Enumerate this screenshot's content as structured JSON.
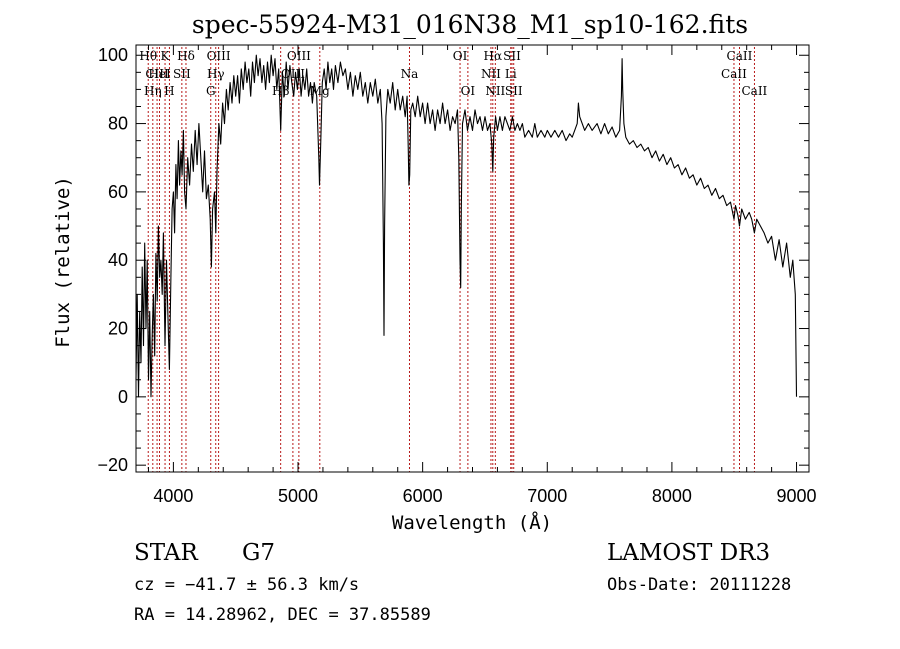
{
  "chart_data": {
    "type": "line",
    "title": "spec-55924-M31_016N38_M1_sp10-162.fits",
    "xlabel": "Wavelength (Å)",
    "ylabel": "Flux (relative)",
    "xlim": [
      3700,
      9100
    ],
    "ylim": [
      -22,
      103
    ],
    "xticks": [
      4000,
      5000,
      6000,
      7000,
      8000,
      9000
    ],
    "yticks": [
      -20,
      0,
      20,
      40,
      60,
      80,
      100
    ],
    "series": [
      {
        "name": "flux",
        "points": [
          [
            3700,
            5
          ],
          [
            3710,
            30
          ],
          [
            3720,
            0
          ],
          [
            3730,
            25
          ],
          [
            3740,
            10
          ],
          [
            3750,
            38
          ],
          [
            3760,
            15
          ],
          [
            3770,
            45
          ],
          [
            3780,
            20
          ],
          [
            3790,
            40
          ],
          [
            3800,
            5
          ],
          [
            3810,
            25
          ],
          [
            3820,
            0
          ],
          [
            3830,
            18
          ],
          [
            3840,
            30
          ],
          [
            3850,
            12
          ],
          [
            3860,
            42
          ],
          [
            3870,
            28
          ],
          [
            3880,
            50
          ],
          [
            3890,
            35
          ],
          [
            3900,
            40
          ],
          [
            3910,
            30
          ],
          [
            3920,
            48
          ],
          [
            3933,
            15
          ],
          [
            3945,
            40
          ],
          [
            3955,
            25
          ],
          [
            3968,
            8
          ],
          [
            3980,
            35
          ],
          [
            3990,
            55
          ],
          [
            4000,
            60
          ],
          [
            4010,
            48
          ],
          [
            4020,
            68
          ],
          [
            4030,
            58
          ],
          [
            4040,
            75
          ],
          [
            4050,
            62
          ],
          [
            4060,
            72
          ],
          [
            4070,
            65
          ],
          [
            4080,
            78
          ],
          [
            4090,
            60
          ],
          [
            4101,
            55
          ],
          [
            4115,
            70
          ],
          [
            4130,
            62
          ],
          [
            4145,
            74
          ],
          [
            4160,
            66
          ],
          [
            4175,
            78
          ],
          [
            4190,
            68
          ],
          [
            4205,
            80
          ],
          [
            4220,
            70
          ],
          [
            4235,
            60
          ],
          [
            4250,
            72
          ],
          [
            4265,
            58
          ],
          [
            4280,
            62
          ],
          [
            4295,
            52
          ],
          [
            4305,
            38
          ],
          [
            4315,
            55
          ],
          [
            4330,
            60
          ],
          [
            4340,
            48
          ],
          [
            4350,
            66
          ],
          [
            4365,
            80
          ],
          [
            4380,
            74
          ],
          [
            4395,
            86
          ],
          [
            4410,
            80
          ],
          [
            4425,
            90
          ],
          [
            4440,
            84
          ],
          [
            4455,
            92
          ],
          [
            4470,
            86
          ],
          [
            4485,
            94
          ],
          [
            4500,
            88
          ],
          [
            4515,
            94
          ],
          [
            4530,
            86
          ],
          [
            4545,
            96
          ],
          [
            4560,
            90
          ],
          [
            4575,
            98
          ],
          [
            4590,
            92
          ],
          [
            4605,
            96
          ],
          [
            4620,
            88
          ],
          [
            4635,
            98
          ],
          [
            4650,
            92
          ],
          [
            4665,
            100
          ],
          [
            4680,
            94
          ],
          [
            4695,
            99
          ],
          [
            4710,
            92
          ],
          [
            4725,
            97
          ],
          [
            4740,
            90
          ],
          [
            4755,
            98
          ],
          [
            4770,
            92
          ],
          [
            4785,
            100
          ],
          [
            4800,
            94
          ],
          [
            4815,
            99
          ],
          [
            4830,
            90
          ],
          [
            4845,
            96
          ],
          [
            4861,
            78
          ],
          [
            4875,
            95
          ],
          [
            4890,
            88
          ],
          [
            4905,
            98
          ],
          [
            4920,
            90
          ],
          [
            4935,
            97
          ],
          [
            4950,
            92
          ],
          [
            4965,
            88
          ],
          [
            4980,
            95
          ],
          [
            4995,
            90
          ],
          [
            5010,
            96
          ],
          [
            5025,
            88
          ],
          [
            5040,
            94
          ],
          [
            5055,
            90
          ],
          [
            5070,
            96
          ],
          [
            5085,
            88
          ],
          [
            5100,
            92
          ],
          [
            5115,
            86
          ],
          [
            5130,
            92
          ],
          [
            5150,
            88
          ],
          [
            5167,
            70
          ],
          [
            5172,
            62
          ],
          [
            5183,
            75
          ],
          [
            5195,
            92
          ],
          [
            5210,
            96
          ],
          [
            5225,
            90
          ],
          [
            5240,
            98
          ],
          [
            5255,
            92
          ],
          [
            5270,
            96
          ],
          [
            5285,
            90
          ],
          [
            5300,
            97
          ],
          [
            5320,
            92
          ],
          [
            5340,
            98
          ],
          [
            5360,
            94
          ],
          [
            5380,
            96
          ],
          [
            5400,
            90
          ],
          [
            5420,
            95
          ],
          [
            5440,
            88
          ],
          [
            5460,
            94
          ],
          [
            5480,
            90
          ],
          [
            5500,
            95
          ],
          [
            5520,
            88
          ],
          [
            5540,
            92
          ],
          [
            5560,
            86
          ],
          [
            5580,
            92
          ],
          [
            5600,
            88
          ],
          [
            5620,
            93
          ],
          [
            5640,
            86
          ],
          [
            5660,
            90
          ],
          [
            5675,
            80
          ],
          [
            5685,
            45
          ],
          [
            5690,
            18
          ],
          [
            5695,
            50
          ],
          [
            5705,
            82
          ],
          [
            5720,
            90
          ],
          [
            5740,
            86
          ],
          [
            5760,
            92
          ],
          [
            5780,
            84
          ],
          [
            5800,
            90
          ],
          [
            5820,
            84
          ],
          [
            5840,
            88
          ],
          [
            5860,
            82
          ],
          [
            5875,
            88
          ],
          [
            5885,
            72
          ],
          [
            5890,
            62
          ],
          [
            5896,
            65
          ],
          [
            5905,
            84
          ],
          [
            5920,
            86
          ],
          [
            5940,
            82
          ],
          [
            5960,
            88
          ],
          [
            5980,
            82
          ],
          [
            6000,
            86
          ],
          [
            6020,
            80
          ],
          [
            6040,
            86
          ],
          [
            6060,
            80
          ],
          [
            6080,
            84
          ],
          [
            6100,
            78
          ],
          [
            6120,
            84
          ],
          [
            6140,
            80
          ],
          [
            6160,
            86
          ],
          [
            6180,
            80
          ],
          [
            6200,
            84
          ],
          [
            6220,
            78
          ],
          [
            6240,
            82
          ],
          [
            6260,
            80
          ],
          [
            6280,
            84
          ],
          [
            6290,
            70
          ],
          [
            6300,
            40
          ],
          [
            6305,
            32
          ],
          [
            6310,
            55
          ],
          [
            6320,
            80
          ],
          [
            6340,
            84
          ],
          [
            6360,
            78
          ],
          [
            6380,
            82
          ],
          [
            6400,
            78
          ],
          [
            6420,
            84
          ],
          [
            6440,
            80
          ],
          [
            6460,
            82
          ],
          [
            6480,
            78
          ],
          [
            6500,
            82
          ],
          [
            6520,
            78
          ],
          [
            6540,
            80
          ],
          [
            6555,
            74
          ],
          [
            6563,
            66
          ],
          [
            6570,
            76
          ],
          [
            6585,
            82
          ],
          [
            6600,
            78
          ],
          [
            6620,
            82
          ],
          [
            6640,
            78
          ],
          [
            6660,
            82
          ],
          [
            6680,
            80
          ],
          [
            6700,
            78
          ],
          [
            6720,
            82
          ],
          [
            6740,
            78
          ],
          [
            6760,
            80
          ],
          [
            6780,
            78
          ],
          [
            6800,
            80
          ],
          [
            6820,
            76
          ],
          [
            6850,
            78
          ],
          [
            6880,
            76
          ],
          [
            6900,
            80
          ],
          [
            6920,
            76
          ],
          [
            6950,
            78
          ],
          [
            6980,
            76
          ],
          [
            7000,
            78
          ],
          [
            7030,
            76
          ],
          [
            7060,
            78
          ],
          [
            7090,
            76
          ],
          [
            7120,
            78
          ],
          [
            7150,
            75
          ],
          [
            7180,
            77
          ],
          [
            7200,
            76
          ],
          [
            7220,
            78
          ],
          [
            7240,
            80
          ],
          [
            7250,
            86
          ],
          [
            7260,
            82
          ],
          [
            7280,
            80
          ],
          [
            7300,
            78
          ],
          [
            7330,
            80
          ],
          [
            7360,
            78
          ],
          [
            7400,
            80
          ],
          [
            7430,
            77
          ],
          [
            7460,
            80
          ],
          [
            7490,
            77
          ],
          [
            7520,
            79
          ],
          [
            7550,
            76
          ],
          [
            7580,
            78
          ],
          [
            7595,
            88
          ],
          [
            7600,
            99
          ],
          [
            7605,
            90
          ],
          [
            7615,
            80
          ],
          [
            7630,
            76
          ],
          [
            7660,
            74
          ],
          [
            7690,
            75
          ],
          [
            7720,
            73
          ],
          [
            7750,
            74
          ],
          [
            7780,
            72
          ],
          [
            7810,
            73
          ],
          [
            7840,
            70
          ],
          [
            7870,
            72
          ],
          [
            7900,
            69
          ],
          [
            7930,
            71
          ],
          [
            7960,
            68
          ],
          [
            7990,
            70
          ],
          [
            8020,
            67
          ],
          [
            8050,
            68
          ],
          [
            8080,
            65
          ],
          [
            8110,
            67
          ],
          [
            8140,
            64
          ],
          [
            8170,
            65
          ],
          [
            8200,
            62
          ],
          [
            8230,
            64
          ],
          [
            8260,
            61
          ],
          [
            8290,
            62
          ],
          [
            8320,
            59
          ],
          [
            8350,
            61
          ],
          [
            8380,
            58
          ],
          [
            8410,
            59
          ],
          [
            8440,
            56
          ],
          [
            8470,
            57
          ],
          [
            8498,
            52
          ],
          [
            8510,
            56
          ],
          [
            8530,
            53
          ],
          [
            8542,
            50
          ],
          [
            8560,
            55
          ],
          [
            8590,
            52
          ],
          [
            8620,
            54
          ],
          [
            8640,
            52
          ],
          [
            8662,
            48
          ],
          [
            8680,
            52
          ],
          [
            8710,
            50
          ],
          [
            8740,
            48
          ],
          [
            8770,
            45
          ],
          [
            8800,
            47
          ],
          [
            8830,
            40
          ],
          [
            8860,
            46
          ],
          [
            8890,
            38
          ],
          [
            8920,
            45
          ],
          [
            8950,
            35
          ],
          [
            8970,
            40
          ],
          [
            8990,
            30
          ],
          [
            9000,
            0
          ]
        ]
      }
    ],
    "lines": [
      {
        "x": 3798,
        "label": "Hθ",
        "row": 0
      },
      {
        "x": 3835,
        "label": "Hη",
        "row": 2
      },
      {
        "x": 3869,
        "label": "CIII",
        "row": 1
      },
      {
        "x": 3889,
        "label": "HeI",
        "row": 1
      },
      {
        "x": 3933,
        "label": "K",
        "row": 0
      },
      {
        "x": 3968,
        "label": "H",
        "row": 2
      },
      {
        "x": 4068,
        "label": "SII",
        "row": 1
      },
      {
        "x": 4101,
        "label": "Hδ",
        "row": 0
      },
      {
        "x": 4300,
        "label": "G",
        "row": 2
      },
      {
        "x": 4340,
        "label": "Hγ",
        "row": 1
      },
      {
        "x": 4363,
        "label": "OIII",
        "row": 0
      },
      {
        "x": 4861,
        "label": "Hβ",
        "row": 2
      },
      {
        "x": 4959,
        "label": "OIII",
        "row": 1
      },
      {
        "x": 5007,
        "label": "OIII",
        "row": 0
      },
      {
        "x": 5175,
        "label": "Mg",
        "row": 2
      },
      {
        "x": 5894,
        "label": "Na",
        "row": 1
      },
      {
        "x": 6300,
        "label": "OI",
        "row": 0
      },
      {
        "x": 6363,
        "label": "OI",
        "row": 2
      },
      {
        "x": 6548,
        "label": "NII",
        "row": 1
      },
      {
        "x": 6563,
        "label": "Hα",
        "row": 0
      },
      {
        "x": 6583,
        "label": "NII",
        "row": 2
      },
      {
        "x": 6707,
        "label": "Li",
        "row": 1
      },
      {
        "x": 6717,
        "label": "SII",
        "row": 0
      },
      {
        "x": 6731,
        "label": "SII",
        "row": 2
      },
      {
        "x": 8498,
        "label": "CaII",
        "row": 1
      },
      {
        "x": 8542,
        "label": "CaII",
        "row": 0
      },
      {
        "x": 8662,
        "label": "CaII",
        "row": 2
      }
    ]
  },
  "info": {
    "object_class": "STAR",
    "subclass": "G7",
    "survey": "LAMOST DR3",
    "redshift": "cz = −41.7 ± 56.3 km/s",
    "obs_date": "Obs-Date: 20111228",
    "coords": "RA =  14.28962, DEC =  37.85589"
  },
  "colors": {
    "line": "#000000",
    "marker": "#b00000"
  }
}
